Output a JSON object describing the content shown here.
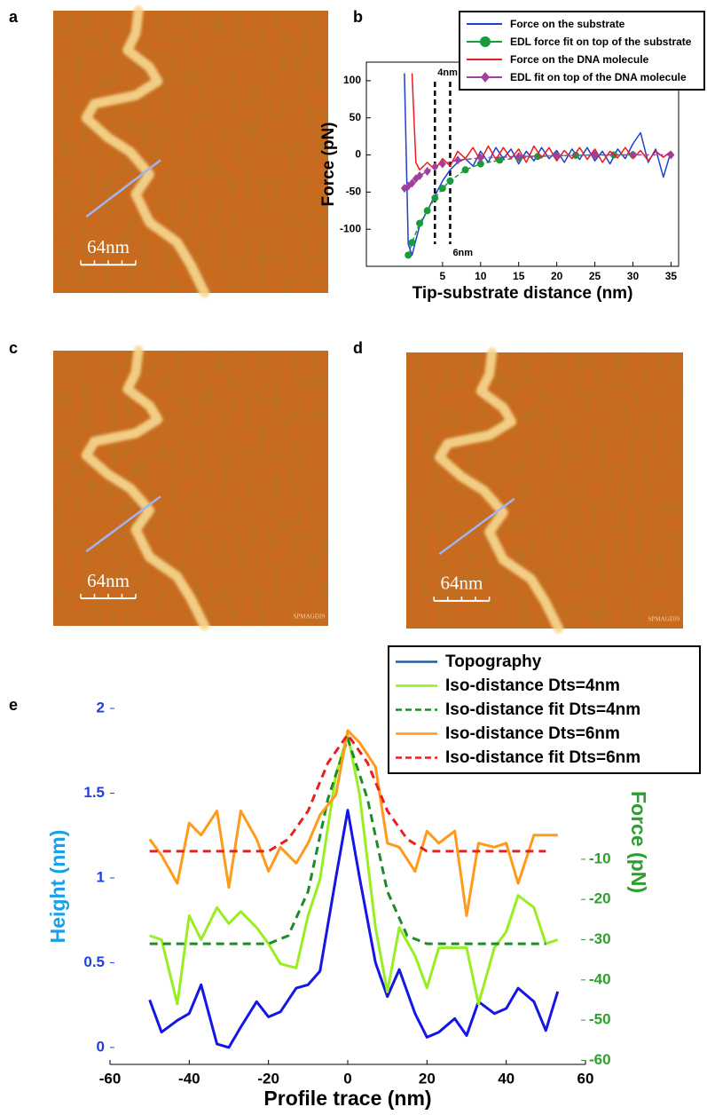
{
  "panels": [
    {
      "label": "a",
      "scale_bar": "64nm"
    },
    {
      "label": "c",
      "scale_bar": "64nm",
      "watermark": "SPMAGE09"
    },
    {
      "label": "d",
      "scale_bar": "64nm",
      "watermark": "SPMAGE09"
    }
  ],
  "chart_data": [
    {
      "label": "b",
      "type": "line",
      "xlabel": "Tip-substrate distance (nm)",
      "ylabel": "Force (pN)",
      "xlim": [
        -5,
        36
      ],
      "ylim": [
        -150,
        125
      ],
      "xticks": [
        5,
        10,
        15,
        20,
        25,
        30,
        35
      ],
      "yticks": [
        -100,
        -50,
        0,
        50,
        100
      ],
      "legend": "upper right",
      "x": [
        0,
        0.5,
        1,
        1.5,
        2,
        2.5,
        3,
        4,
        5,
        6,
        7,
        8,
        9,
        10,
        11,
        12,
        13,
        14,
        15,
        16,
        17,
        18,
        19,
        20,
        21,
        22,
        23,
        24,
        25,
        26,
        27,
        28,
        29,
        30,
        31,
        32,
        33,
        34,
        35
      ],
      "series": [
        {
          "name": "Force on the substrate",
          "color": "#1f3fd0",
          "values": [
            110,
            -120,
            -135,
            -115,
            -95,
            -85,
            -75,
            -55,
            -35,
            -20,
            -10,
            -5,
            -15,
            5,
            -10,
            10,
            -5,
            8,
            -12,
            5,
            -8,
            10,
            -5,
            6,
            -10,
            8,
            -6,
            10,
            -8,
            5,
            -12,
            8,
            -5,
            15,
            30,
            -10,
            8,
            -30,
            5
          ]
        },
        {
          "name": "EDL force fit on top of the substrate",
          "color": "#1a9a3a",
          "style": "dashed",
          "marker": "circle",
          "x": [
            0.5,
            1,
            2,
            3,
            4,
            5,
            6,
            8,
            10,
            12.5,
            15,
            17.5,
            20,
            22.5,
            25,
            27.5,
            30
          ],
          "values": [
            -135,
            -118,
            -92,
            -75,
            -58,
            -45,
            -35,
            -20,
            -12,
            -7,
            -4,
            -2,
            -1,
            -0.5,
            0,
            0,
            0
          ]
        },
        {
          "name": "Force on the DNA molecule",
          "color": "#ee1c1c",
          "values": [
            null,
            null,
            110,
            -10,
            -20,
            -15,
            -10,
            -20,
            -5,
            -15,
            5,
            -5,
            10,
            -8,
            12,
            -6,
            10,
            -5,
            8,
            -10,
            12,
            -4,
            10,
            -8,
            6,
            -5,
            10,
            -6,
            8,
            -10,
            5,
            -4,
            10,
            -5,
            6,
            -8,
            5,
            -3,
            5
          ]
        },
        {
          "name": "EDL fit on top of the DNA molecule",
          "color": "#a0409a",
          "style": "dashed",
          "marker": "diamond",
          "x": [
            0,
            0.5,
            1,
            1.5,
            2,
            3,
            4,
            5,
            7,
            10,
            15,
            20,
            25,
            30,
            35
          ],
          "values": [
            -45,
            -42,
            -38,
            -32,
            -28,
            -22,
            -16,
            -12,
            -7,
            -4,
            -2,
            -1,
            0,
            0,
            0
          ]
        }
      ],
      "annotations": [
        {
          "text": "4nm",
          "x": 4
        },
        {
          "text": "6nm",
          "x": 6
        }
      ]
    },
    {
      "label": "e",
      "type": "line",
      "xlabel": "Profile trace (nm)",
      "ylabel": "Height (nm)",
      "y2label": "Force (pN)",
      "ycolor": "#1f3fe0",
      "ylabel_color": "#1aa0e6",
      "y2color": "#2e9e2e",
      "xlim": [
        -60,
        60
      ],
      "xticks": [
        -60,
        -40,
        -20,
        0,
        20,
        40,
        60
      ],
      "ylim": [
        -0.1,
        2
      ],
      "yticks": [
        0,
        0.5,
        1,
        1.5,
        2
      ],
      "y2lim": [
        -61,
        27.5
      ],
      "y2ticks": [
        -60,
        -50,
        -40,
        -30,
        -20,
        -10
      ],
      "legend": "upper right",
      "x": [
        -50,
        -47,
        -43,
        -40,
        -37,
        -33,
        -30,
        -27,
        -23,
        -20,
        -17,
        -13,
        -10,
        -7,
        -3,
        0,
        3,
        7,
        10,
        13,
        17,
        20,
        23,
        27,
        30,
        33,
        37,
        40,
        43,
        47,
        50,
        53
      ],
      "series": [
        {
          "name": "Topography",
          "color": "#1515e6",
          "legend_color": "#1f5fa0",
          "values": [
            0.28,
            0.09,
            0.16,
            0.2,
            0.37,
            0.02,
            0.0,
            0.12,
            0.27,
            0.18,
            0.21,
            0.35,
            0.37,
            0.45,
            1.0,
            1.4,
            1.0,
            0.5,
            0.3,
            0.46,
            0.2,
            0.06,
            0.09,
            0.17,
            0.07,
            0.27,
            0.2,
            0.23,
            0.35,
            0.27,
            0.1,
            0.33
          ]
        },
        {
          "name": "Iso-distance Dts=4nm",
          "color": "#99ee22",
          "axis": "y2",
          "values": [
            -29,
            -30,
            -46,
            -24,
            -30,
            -22,
            -26,
            -23,
            -27,
            -31,
            -36,
            -37,
            -24,
            -15,
            11,
            21,
            6,
            -27,
            -43,
            -27,
            -34,
            -42,
            -32,
            -32,
            -32,
            -46,
            -32,
            -28,
            -19,
            -22,
            -31,
            -30
          ]
        },
        {
          "name": "Iso-distance fit Dts=4nm",
          "color": "#1f8a2a",
          "style": "dashed",
          "axis": "y2",
          "x": [
            -50,
            -45,
            -40,
            -35,
            -30,
            -25,
            -20,
            -15,
            -10,
            -5,
            0,
            5,
            10,
            15,
            20,
            25,
            30,
            35,
            40,
            45,
            50
          ],
          "values": [
            -31,
            -31,
            -31,
            -31,
            -31,
            -31,
            -31,
            -29,
            -18,
            5,
            20,
            5,
            -18,
            -29,
            -31,
            -31,
            -31,
            -31,
            -31,
            -31,
            -31
          ]
        },
        {
          "name": "Iso-distance Dts=6nm",
          "color": "#ff9a1a",
          "axis": "y2",
          "values": [
            -5,
            -9,
            -16,
            -1,
            -4,
            2,
            -17,
            2,
            -5,
            -13,
            -7,
            -11,
            -6,
            1,
            6,
            22,
            19,
            13,
            -6,
            -7,
            -13,
            -3,
            -6,
            -3,
            -24,
            -6,
            -7,
            -6,
            -16,
            -4,
            -4,
            -4
          ]
        },
        {
          "name": "Iso-distance fit Dts=6nm",
          "color": "#e82020",
          "style": "dashed",
          "axis": "y2",
          "x": [
            -50,
            -45,
            -40,
            -35,
            -30,
            -25,
            -20,
            -15,
            -10,
            -5,
            0,
            5,
            10,
            15,
            20,
            25,
            30,
            35,
            40,
            45,
            50
          ],
          "values": [
            -8,
            -8,
            -8,
            -8,
            -8,
            -8,
            -8,
            -5,
            2,
            14,
            21,
            14,
            2,
            -5,
            -8,
            -8,
            -8,
            -8,
            -8,
            -8,
            -8
          ]
        }
      ]
    }
  ]
}
